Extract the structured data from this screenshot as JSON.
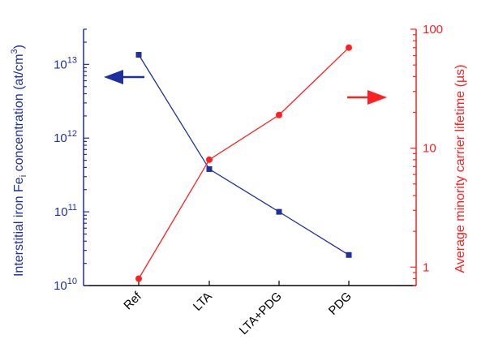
{
  "chart_data": {
    "type": "line",
    "categories": [
      "Ref",
      "LTA",
      "LTA+PDG",
      "PDG"
    ],
    "series": [
      {
        "axis": "left",
        "color": "#1f2fa0",
        "marker": "square",
        "values": [
          13500000000000,
          380000000000,
          100000000000,
          26000000000
        ]
      },
      {
        "axis": "right",
        "color": "#ff2020",
        "marker": "circle",
        "values": [
          0.8,
          8,
          19,
          70
        ]
      }
    ],
    "y_left": {
      "scale": "log",
      "range": [
        10000000000,
        30000000000000
      ],
      "color": "#1f2fa0",
      "title": "Interstitial iron Fe",
      "title_sub": "i",
      "title_end": " concentration (at/cm",
      "title_sup": "3",
      "title_close": ")",
      "ticks": [
        {
          "base": "10",
          "exp": "10",
          "value": 10000000000
        },
        {
          "base": "10",
          "exp": "11",
          "value": 100000000000
        },
        {
          "base": "10",
          "exp": "12",
          "value": 1000000000000
        },
        {
          "base": "10",
          "exp": "13",
          "value": 10000000000000
        }
      ]
    },
    "y_right": {
      "scale": "log",
      "range": [
        0.7,
        100
      ],
      "color": "#ff2020",
      "title": "Average minority carrier lifetime (µs)",
      "ticks": [
        {
          "label": "1",
          "value": 1
        },
        {
          "label": "10",
          "value": 10
        },
        {
          "label": "100",
          "value": 100
        }
      ]
    },
    "annotations": [
      {
        "type": "arrow",
        "direction": "left",
        "color": "#1f2fa0"
      },
      {
        "type": "arrow",
        "direction": "right",
        "color": "#ff2020"
      }
    ],
    "grid": false,
    "legend": "none"
  }
}
